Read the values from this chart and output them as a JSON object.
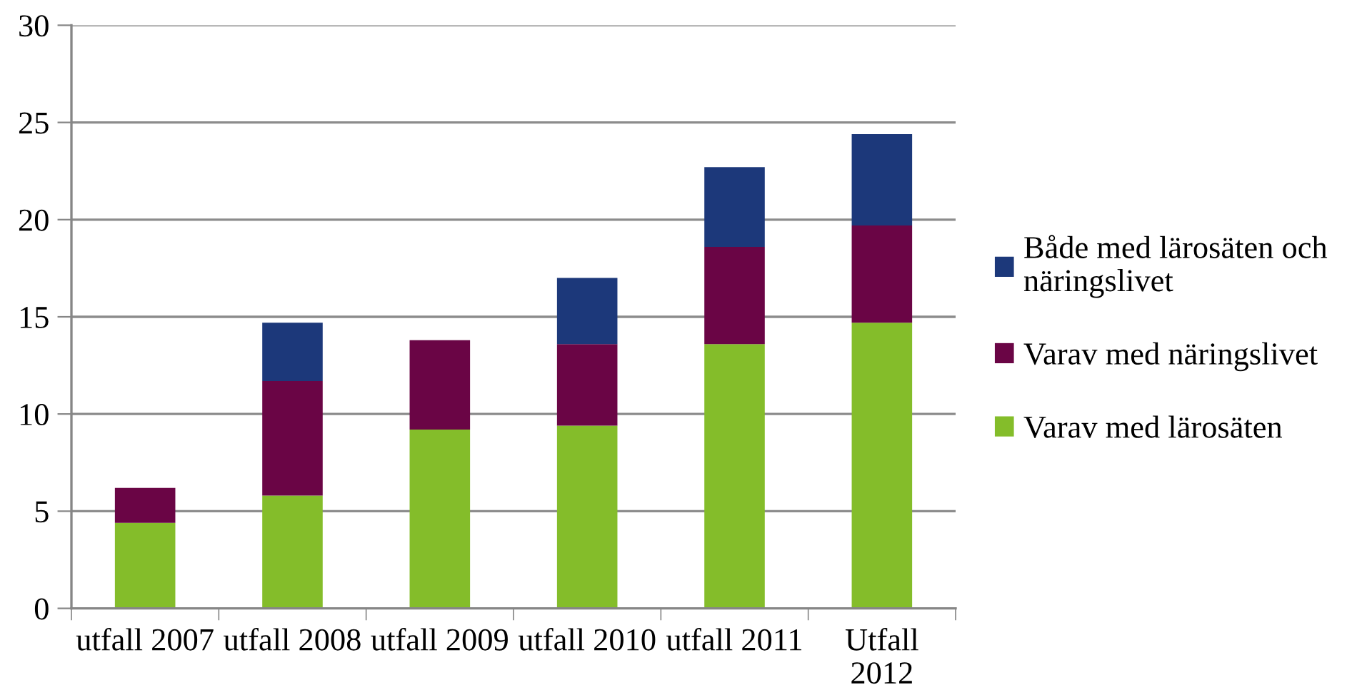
{
  "chart_data": {
    "type": "bar",
    "stacked": true,
    "categories": [
      "utfall 2007",
      "utfall 2008",
      "utfall 2009",
      "utfall 2010",
      "utfall 2011",
      "Utfall 2012"
    ],
    "series": [
      {
        "name": "Varav med lärosäten",
        "color": "#84bd2a",
        "values": [
          4.4,
          5.8,
          9.2,
          9.4,
          13.6,
          14.7
        ]
      },
      {
        "name": "Varav med näringslivet",
        "color": "#6a0545",
        "values": [
          1.8,
          5.9,
          4.6,
          4.2,
          5.0,
          5.0
        ]
      },
      {
        "name": "Både med lärosäten och näringslivet",
        "color": "#1c387a",
        "values": [
          null,
          3.0,
          null,
          3.4,
          4.1,
          4.7
        ]
      }
    ],
    "ylim": [
      0,
      30
    ],
    "yticks": [
      0,
      5,
      10,
      15,
      20,
      25,
      30
    ],
    "grid": "y",
    "legend": "right"
  }
}
